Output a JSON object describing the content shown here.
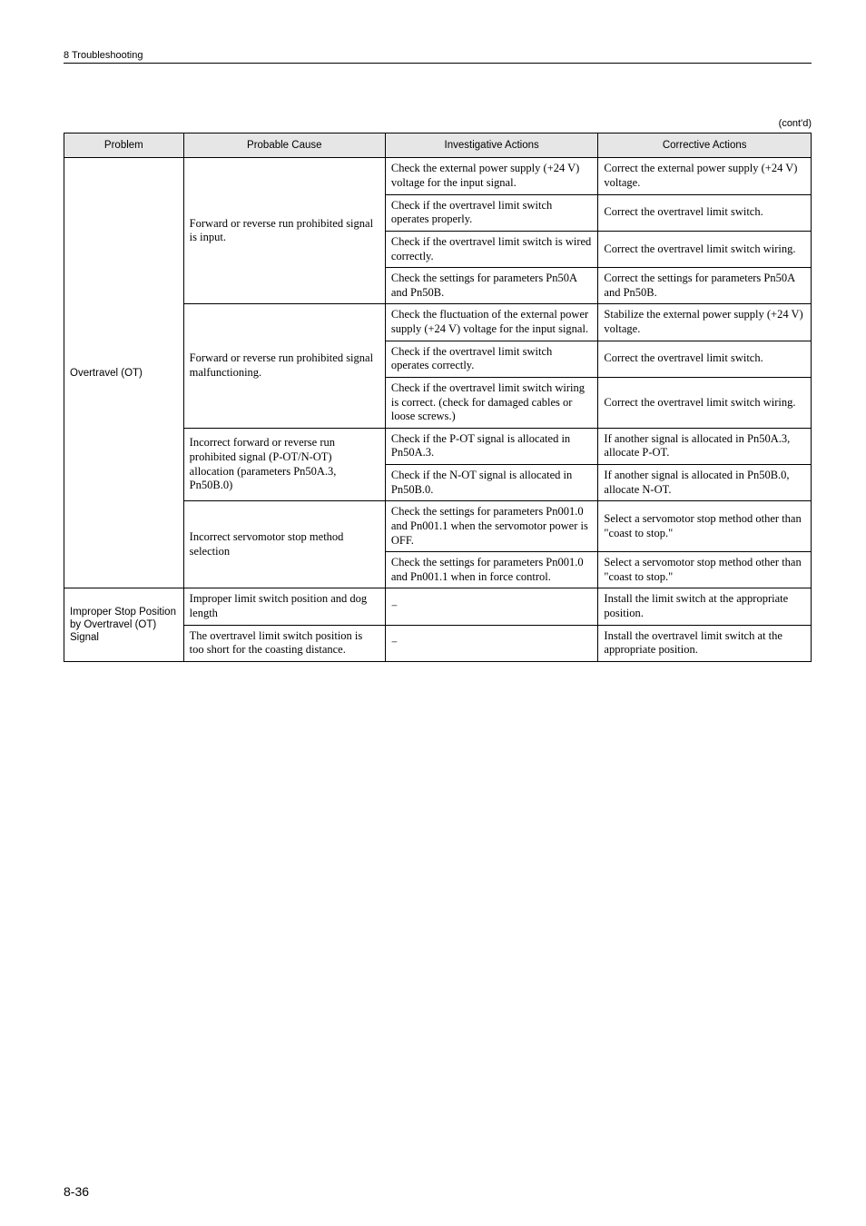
{
  "header": {
    "section": "8  Troubleshooting",
    "contd": "(cont'd)"
  },
  "columns": {
    "problem": "Problem",
    "cause": "Probable Cause",
    "invest": "Investigative Actions",
    "corr": "Corrective Actions"
  },
  "rows": [
    {
      "problem": "Overtravel (OT)",
      "groups": [
        {
          "cause": "Forward or reverse run prohibited signal is input.",
          "pairs": [
            {
              "invest": "Check the external power supply (+24 V) voltage for the input signal.",
              "corr": "Correct the external power supply (+24 V) voltage."
            },
            {
              "invest": "Check if the overtravel limit switch operates properly.",
              "corr": "Correct the overtravel limit switch."
            },
            {
              "invest": "Check if the overtravel limit switch is wired correctly.",
              "corr": "Correct the overtravel limit switch wiring."
            },
            {
              "invest": "Check the settings for parameters Pn50A and Pn50B.",
              "corr": "Correct the settings for parameters Pn50A and Pn50B."
            }
          ]
        },
        {
          "cause": "Forward or reverse run prohibited signal malfunctioning.",
          "pairs": [
            {
              "invest": "Check the fluctuation of the external power supply (+24 V) voltage for the input signal.",
              "corr": "Stabilize the external power supply (+24 V) voltage."
            },
            {
              "invest": "Check if the overtravel limit switch operates correctly.",
              "corr": "Correct the overtravel limit switch."
            },
            {
              "invest": "Check if the overtravel limit switch wiring is correct. (check for damaged cables or loose screws.)",
              "corr": "Correct the overtravel limit switch wiring."
            }
          ]
        },
        {
          "cause": "Incorrect forward or reverse run prohibited signal (P-OT/N-OT) allocation (parameters Pn50A.3, Pn50B.0)",
          "pairs": [
            {
              "invest": "Check if the P-OT signal is allocated in Pn50A.3.",
              "corr": "If another signal is allocated in Pn50A.3, allocate P-OT."
            },
            {
              "invest": "Check if the N-OT signal is allocated in Pn50B.0.",
              "corr": "If another signal is allocated in Pn50B.0, allocate N-OT."
            }
          ]
        },
        {
          "cause": "Incorrect servomotor stop method selection",
          "pairs": [
            {
              "invest": "Check the settings for parameters Pn001.0 and Pn001.1 when the servomotor power is OFF.",
              "corr": "Select a servomotor stop method other than \"coast to stop.\""
            },
            {
              "invest": "Check the settings for parameters Pn001.0 and Pn001.1 when in force control.",
              "corr": "Select a servomotor stop method other than \"coast to stop.\""
            }
          ]
        }
      ]
    },
    {
      "problem": "Improper Stop Position by Overtravel (OT) Signal",
      "groups": [
        {
          "cause": "Improper limit switch position and dog length",
          "pairs": [
            {
              "invest": "−",
              "corr": "Install the limit switch at the appropriate position."
            }
          ]
        },
        {
          "cause": "The overtravel limit switch position is too short for the coasting distance.",
          "pairs": [
            {
              "invest": "−",
              "corr": "Install the overtravel limit switch at the appropriate position."
            }
          ]
        }
      ]
    }
  ],
  "footer": {
    "pagenum": "8-36"
  }
}
